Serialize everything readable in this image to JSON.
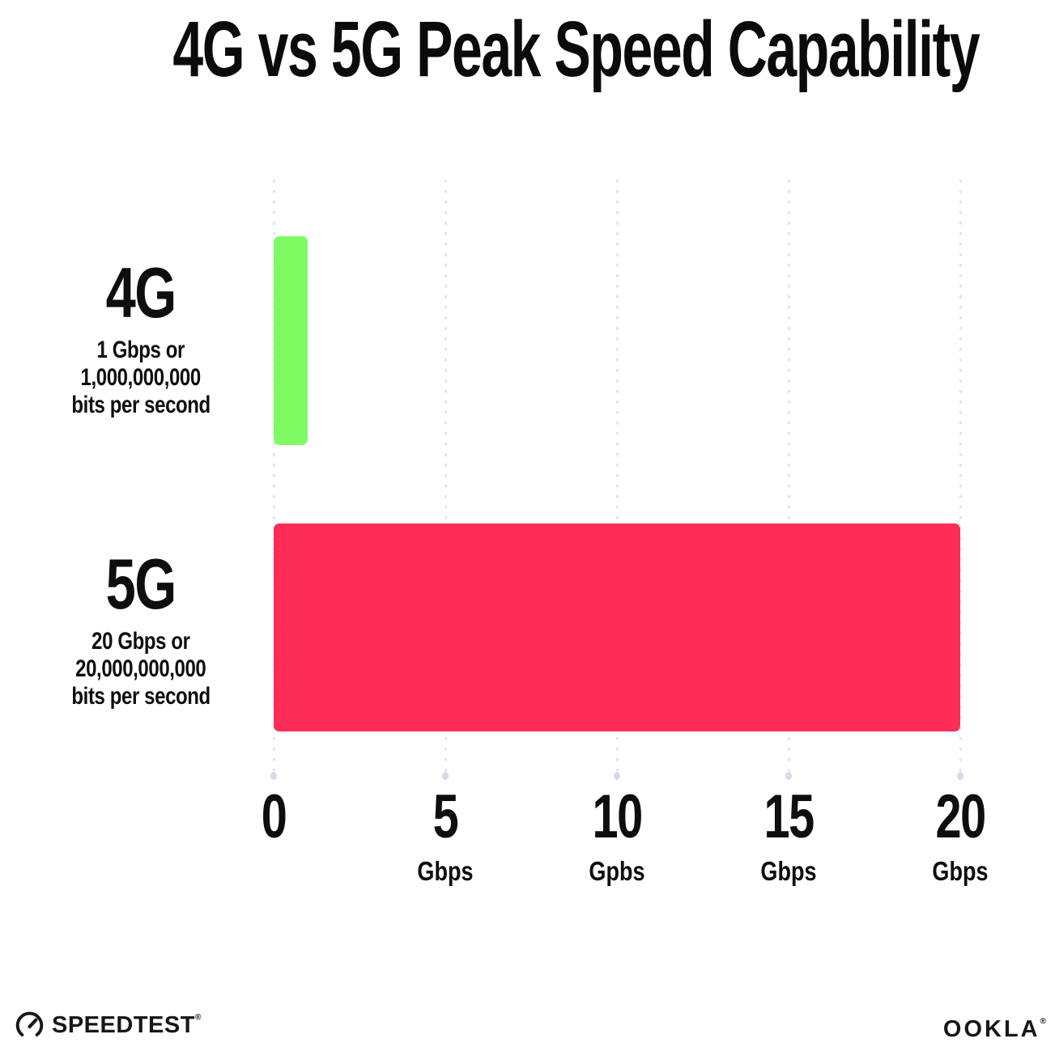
{
  "title": "4G vs 5G Peak Speed Capability",
  "chart_data": {
    "type": "bar",
    "orientation": "horizontal",
    "title": "4G vs 5G Peak Speed Capability",
    "categories": [
      "4G",
      "5G"
    ],
    "values": [
      1,
      20
    ],
    "bar_colors": [
      "#80fa62",
      "#fd2d58"
    ],
    "category_sublabels": [
      [
        "1 Gbps or",
        "1,000,000,000",
        "bits per second"
      ],
      [
        "20 Gbps or",
        "20,000,000,000",
        "bits per second"
      ]
    ],
    "xlim": [
      0,
      20
    ],
    "x_ticks": [
      {
        "value": "0",
        "unit": ""
      },
      {
        "value": "5",
        "unit": "Gbps"
      },
      {
        "value": "10",
        "unit": "Gpbs"
      },
      {
        "value": "15",
        "unit": "Gbps"
      },
      {
        "value": "20",
        "unit": "Gbps"
      }
    ],
    "grid": "vertical-dotted",
    "gridline_color": "#e4e4ef",
    "legend": "none"
  },
  "footer": {
    "speedtest_label": "SPEEDTEST",
    "speedtest_mark": "®",
    "ookla_label": "OOKLA",
    "ookla_mark": "®"
  }
}
